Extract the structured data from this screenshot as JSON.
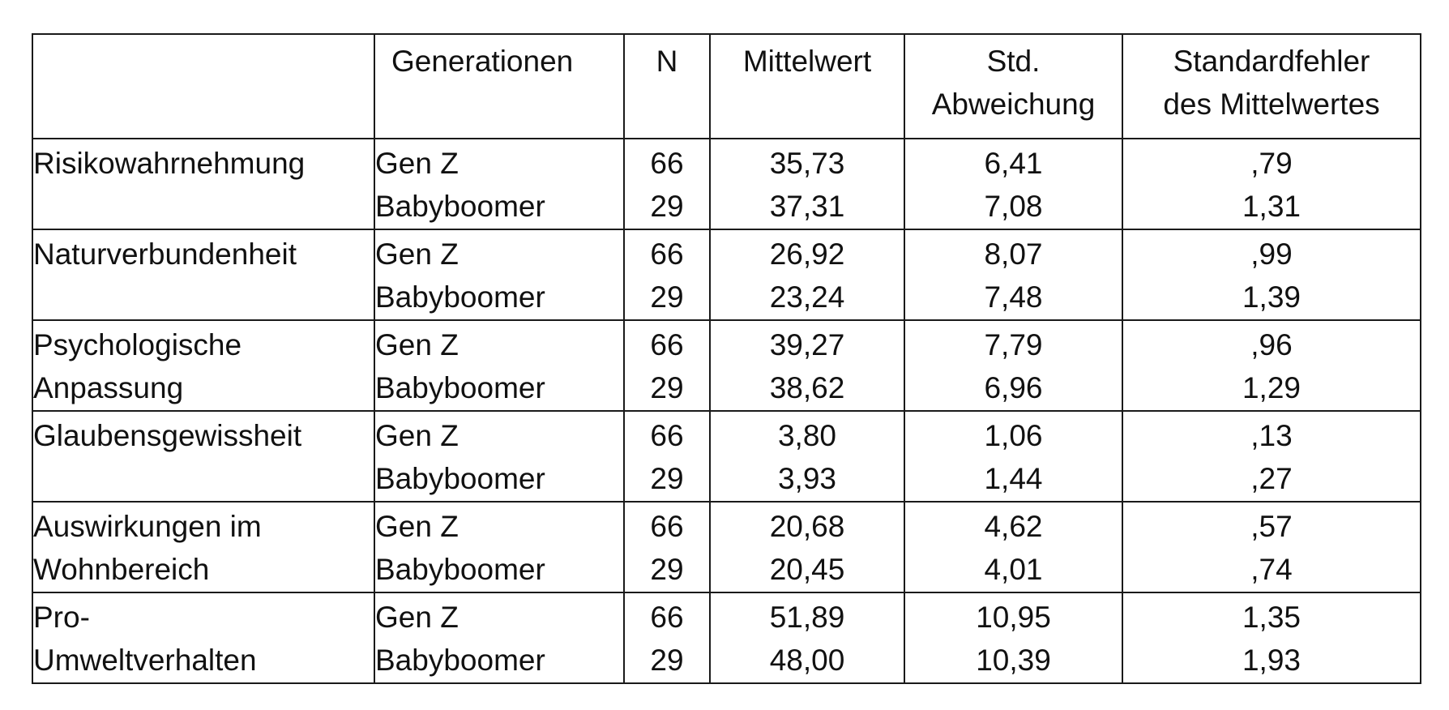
{
  "header": {
    "variable": "",
    "generation": "Generationen",
    "n": "N",
    "mean": "Mittelwert",
    "sd_line1": "Std.",
    "sd_line2": "Abweichung",
    "se_line1": "Standardfehler",
    "se_line2": "des Mittelwertes"
  },
  "rows": [
    {
      "variable": "Risikowahrnehmung",
      "groups": [
        {
          "generation": "Gen Z",
          "n": "66",
          "mean": "35,73",
          "sd": "6,41",
          "se": ",79"
        },
        {
          "generation": "Babyboomer",
          "n": "29",
          "mean": "37,31",
          "sd": "7,08",
          "se": "1,31"
        }
      ]
    },
    {
      "variable": "Naturverbundenheit",
      "groups": [
        {
          "generation": "Gen Z",
          "n": "66",
          "mean": "26,92",
          "sd": "8,07",
          "se": ",99"
        },
        {
          "generation": "Babyboomer",
          "n": "29",
          "mean": "23,24",
          "sd": "7,48",
          "se": "1,39"
        }
      ]
    },
    {
      "variable": "Psychologische Anpassung",
      "groups": [
        {
          "generation": "Gen Z",
          "n": "66",
          "mean": "39,27",
          "sd": "7,79",
          "se": ",96"
        },
        {
          "generation": "Babyboomer",
          "n": "29",
          "mean": "38,62",
          "sd": "6,96",
          "se": "1,29"
        }
      ]
    },
    {
      "variable": "Glaubensgewissheit",
      "groups": [
        {
          "generation": "Gen Z",
          "n": "66",
          "mean": "3,80",
          "sd": "1,06",
          "se": ",13"
        },
        {
          "generation": "Babyboomer",
          "n": "29",
          "mean": "3,93",
          "sd": "1,44",
          "se": ",27"
        }
      ]
    },
    {
      "variable": "Auswirkungen im Wohnbereich",
      "groups": [
        {
          "generation": "Gen Z",
          "n": "66",
          "mean": "20,68",
          "sd": "4,62",
          "se": ",57"
        },
        {
          "generation": "Babyboomer",
          "n": "29",
          "mean": "20,45",
          "sd": "4,01",
          "se": ",74"
        }
      ]
    },
    {
      "variable": "Pro-\nUmweltverhalten",
      "groups": [
        {
          "generation": "Gen Z",
          "n": "66",
          "mean": "51,89",
          "sd": "10,95",
          "se": "1,35"
        },
        {
          "generation": "Babyboomer",
          "n": "29",
          "mean": "48,00",
          "sd": "10,39",
          "se": "1,93"
        }
      ]
    }
  ]
}
